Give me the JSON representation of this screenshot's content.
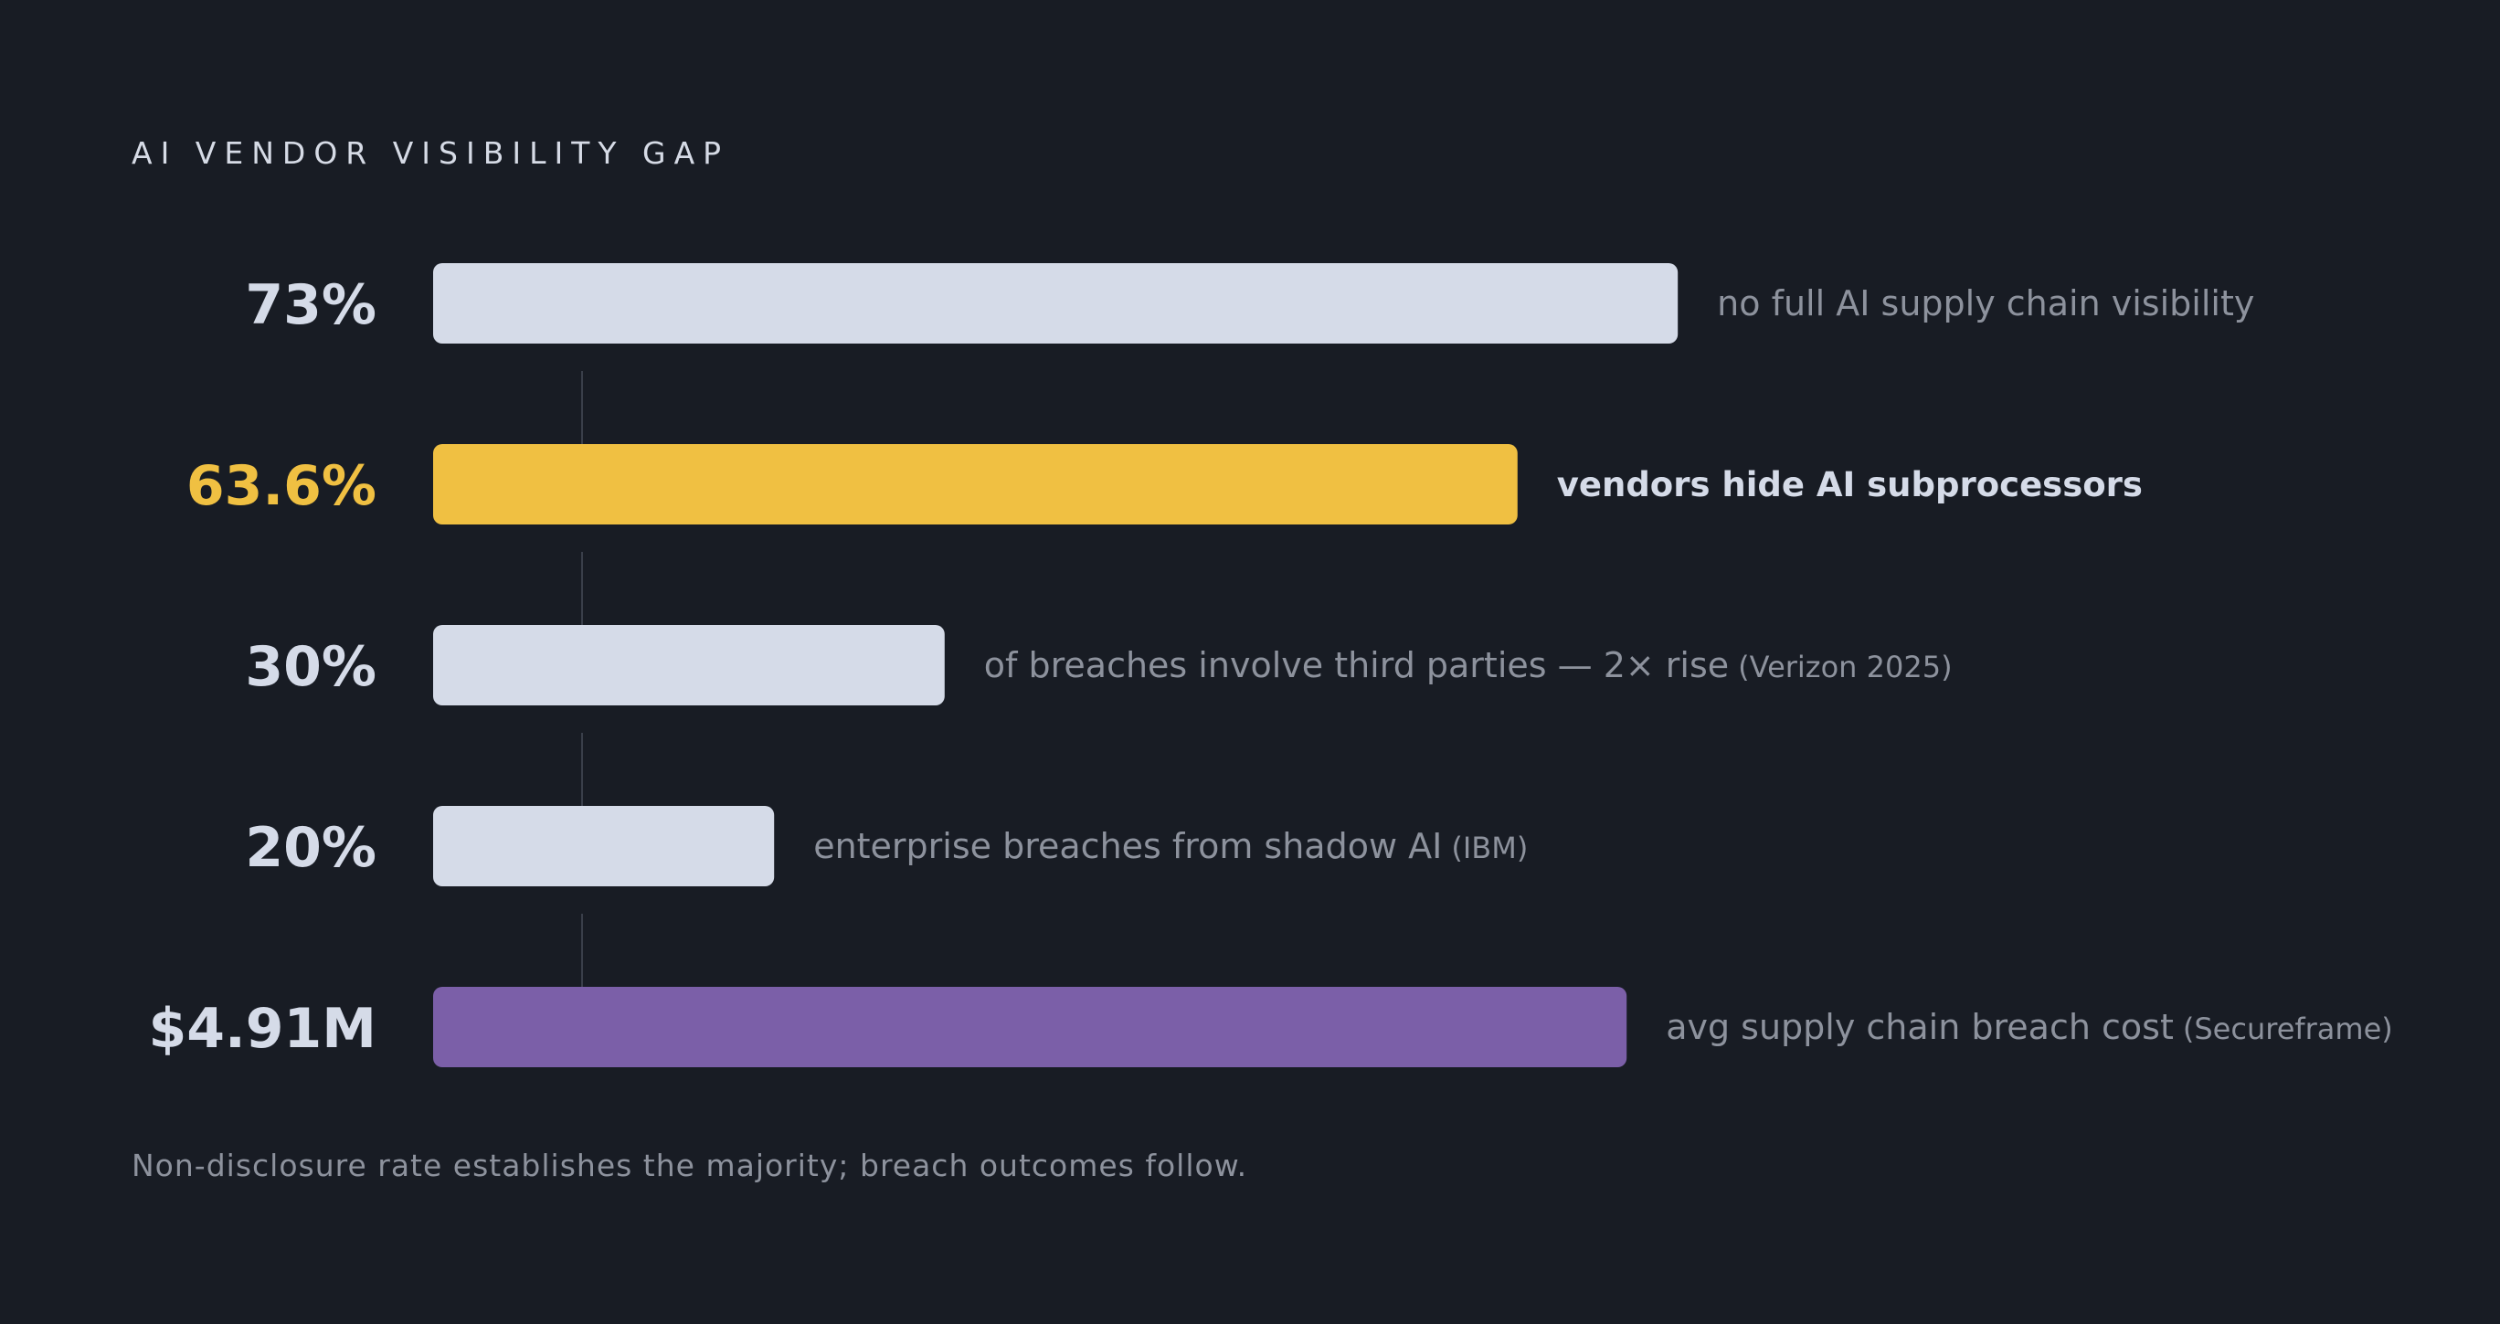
{
  "chart_data": {
    "type": "bar",
    "orientation": "horizontal",
    "title": "AI VENDOR VISIBILITY GAP",
    "footer": "Non-disclosure rate establishes the majority; breach outcomes follow.",
    "bars": [
      {
        "value_label": "73%",
        "description": "no full AI supply chain visibility",
        "source": "",
        "value": 73,
        "fill_fraction": 0.73,
        "color": "#d5dbe8",
        "label_color": "#d5dbe8",
        "highlight": false
      },
      {
        "value_label": "63.6%",
        "description": "vendors hide AI subprocessors",
        "source": "",
        "value": 63.6,
        "fill_fraction": 0.636,
        "color": "#f0c042",
        "label_color": "#f0c042",
        "highlight": true
      },
      {
        "value_label": "30%",
        "description": "of breaches involve third parties — 2× rise",
        "source": "(Verizon 2025)",
        "value": 30,
        "fill_fraction": 0.3,
        "color": "#d5dbe8",
        "label_color": "#d5dbe8",
        "highlight": false
      },
      {
        "value_label": "20%",
        "description": "enterprise breaches from shadow AI",
        "source": "(IBM)",
        "value": 20,
        "fill_fraction": 0.2,
        "color": "#d5dbe8",
        "label_color": "#d5dbe8",
        "highlight": false
      },
      {
        "value_label": "$4.91M",
        "description": "avg supply chain breach cost",
        "source": "(Secureframe)",
        "value": 4.91,
        "fill_fraction": 0.7,
        "color": "#7b5fa8",
        "label_color": "#d5dbe8",
        "highlight": false
      }
    ],
    "colors": {
      "background": "#181c24",
      "muted_text": "#8d929d",
      "highlight_text": "#d5dbe8",
      "connector": "#3a3f4a"
    },
    "grid": false,
    "legend": "none"
  }
}
